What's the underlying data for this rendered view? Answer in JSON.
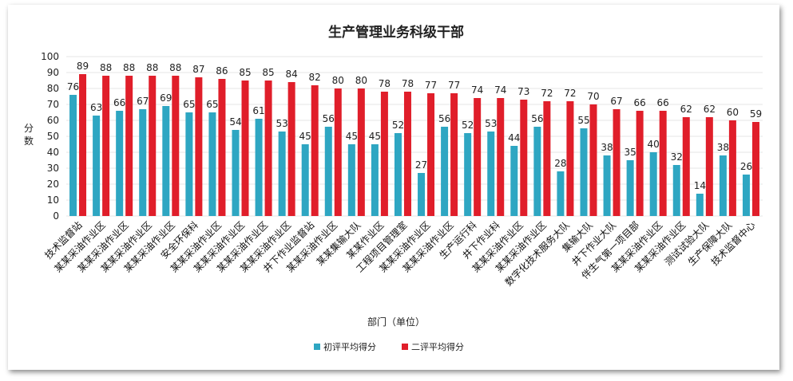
{
  "chart_data": {
    "type": "bar",
    "title": "生产管理业务科级干部",
    "xlabel": "部门（单位）",
    "ylabel": "分数",
    "ylim": [
      0,
      100
    ],
    "yticks": [
      0,
      10,
      20,
      30,
      40,
      50,
      60,
      70,
      80,
      90,
      100
    ],
    "grid": true,
    "legend_position": "bottom",
    "categories": [
      "技术监督站",
      "某某采油作业区",
      "某某采油作业区",
      "某某采油作业区",
      "某某采油作业区",
      "安全环保科",
      "某某采油作业区",
      "某某采油作业区",
      "某某采油作业区",
      "某某采油作业区",
      "井下作业监督站",
      "某某采油作业区",
      "某某集输大队",
      "某某作业区",
      "工程项目管理室",
      "某某采油作业区",
      "某某采油作业区",
      "生产运行科",
      "井下作业科",
      "某某采油作业区",
      "某某采油作业区",
      "数字化技术服务大队",
      "集输大队",
      "井下作业大队",
      "伴生气第一项目部",
      "某某采油作业区",
      "某某采油作业区",
      "测试试验大队",
      "生产保障大队",
      "技术监督中心"
    ],
    "series": [
      {
        "name": "初评平均得分",
        "color": "#2ea6c2",
        "values": [
          76,
          63,
          66,
          67,
          69,
          65,
          65,
          54,
          61,
          53,
          45,
          56,
          45,
          45,
          52,
          27,
          56,
          52,
          53,
          44,
          56,
          28,
          55,
          38,
          35,
          40,
          32,
          14,
          38,
          26
        ]
      },
      {
        "name": "二评平均得分",
        "color": "#e01e2a",
        "values": [
          89,
          88,
          88,
          88,
          88,
          87,
          86,
          85,
          85,
          84,
          82,
          80,
          80,
          78,
          78,
          77,
          77,
          74,
          74,
          73,
          72,
          72,
          70,
          67,
          66,
          66,
          62,
          62,
          60,
          59
        ]
      }
    ]
  }
}
